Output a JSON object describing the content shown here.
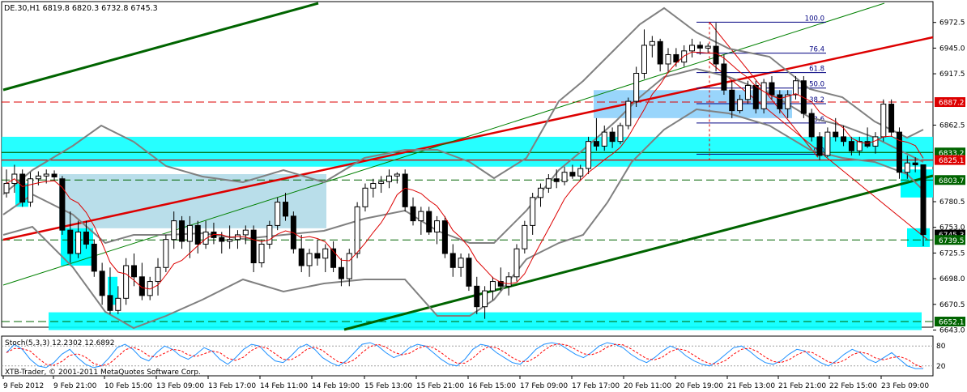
{
  "header": {
    "symbol": "DE.30,H1",
    "ohlc": "6819.8 6820.3 6732.8 6745.3"
  },
  "indicator": {
    "label": "Stoch(5,3,3) 12.2302 12.6892",
    "levels": [
      "80",
      "20"
    ]
  },
  "copyright": "XTB-Trader, © 2001-2011 MetaQuotes Software Corp.",
  "price_axis": {
    "ticks": [
      "6972.5",
      "6945.0",
      "6917.5",
      "6862.5",
      "6780.5",
      "6753.0",
      "6725.5",
      "6698.0",
      "6670.5",
      "6643.0"
    ],
    "tick_values": [
      6972.5,
      6945.0,
      6917.5,
      6862.5,
      6780.5,
      6753.0,
      6725.5,
      6698.0,
      6670.5,
      6643.0
    ],
    "markers": [
      {
        "text": "6887.2",
        "value": 6887.2,
        "color": "#dd0000"
      },
      {
        "text": "6833.2",
        "value": 6833.2,
        "color": "#006400"
      },
      {
        "text": "6825.1",
        "value": 6825.1,
        "color": "#dd0000"
      },
      {
        "text": "6803.7",
        "value": 6803.7,
        "color": "#006400"
      },
      {
        "text": "6745.3",
        "value": 6745.3,
        "color": "#000000"
      },
      {
        "text": "6739.5",
        "value": 6739.5,
        "color": "#006400"
      },
      {
        "text": "6652.1",
        "value": 6652.1,
        "color": "#006400"
      }
    ]
  },
  "time_axis": [
    "9 Feb 2012",
    "9 Feb 21:00",
    "10 Feb 15:00",
    "13 Feb 09:00",
    "13 Feb 17:00",
    "14 Feb 11:00",
    "14 Feb 19:00",
    "15 Feb 13:00",
    "15 Feb 21:00",
    "16 Feb 15:00",
    "17 Feb 09:00",
    "17 Feb 17:00",
    "20 Feb 11:00",
    "20 Feb 19:00",
    "21 Feb 13:00",
    "21 Feb 21:00",
    "22 Feb 15:00",
    "23 Feb 09:00"
  ],
  "fibonacci": {
    "levels": [
      "100.0",
      "76.4",
      "61.8",
      "50.0",
      "38.2",
      "23.6",
      "0.0"
    ],
    "values": [
      6972.8,
      6939.6,
      6918.8,
      6902.2,
      6885.5,
      6864.8,
      6831.4
    ]
  },
  "colors": {
    "bull": "#ffffff",
    "bear": "#000000",
    "zone": "#00ffff",
    "zone_gray": "#add8e6",
    "trend": "#008000",
    "resistance": "#dd0000",
    "bands": "#808080",
    "stoch_main": "#1e90ff",
    "stoch_signal": "#ff0000"
  },
  "chart_data": {
    "type": "candlestick",
    "symbol": "DE.30",
    "timeframe": "H1",
    "ylim": [
      6643.0,
      6990.0
    ],
    "candles": [
      {
        "o": 6790,
        "h": 6815,
        "l": 6785,
        "c": 6800
      },
      {
        "o": 6800,
        "h": 6820,
        "l": 6790,
        "c": 6810
      },
      {
        "o": 6810,
        "h": 6815,
        "l": 6775,
        "c": 6780
      },
      {
        "o": 6780,
        "h": 6812,
        "l": 6775,
        "c": 6805
      },
      {
        "o": 6805,
        "h": 6813,
        "l": 6798,
        "c": 6808
      },
      {
        "o": 6808,
        "h": 6815,
        "l": 6800,
        "c": 6810
      },
      {
        "o": 6810,
        "h": 6814,
        "l": 6803,
        "c": 6807
      },
      {
        "o": 6805,
        "h": 6808,
        "l": 6745,
        "c": 6750
      },
      {
        "o": 6750,
        "h": 6770,
        "l": 6715,
        "c": 6725
      },
      {
        "o": 6725,
        "h": 6760,
        "l": 6720,
        "c": 6748
      },
      {
        "o": 6748,
        "h": 6760,
        "l": 6730,
        "c": 6735
      },
      {
        "o": 6735,
        "h": 6740,
        "l": 6700,
        "c": 6706
      },
      {
        "o": 6706,
        "h": 6715,
        "l": 6670,
        "c": 6680
      },
      {
        "o": 6680,
        "h": 6710,
        "l": 6660,
        "c": 6664
      },
      {
        "o": 6664,
        "h": 6690,
        "l": 6660,
        "c": 6677
      },
      {
        "o": 6677,
        "h": 6720,
        "l": 6670,
        "c": 6712
      },
      {
        "o": 6712,
        "h": 6725,
        "l": 6690,
        "c": 6700
      },
      {
        "o": 6700,
        "h": 6715,
        "l": 6675,
        "c": 6680
      },
      {
        "o": 6680,
        "h": 6700,
        "l": 6675,
        "c": 6695
      },
      {
        "o": 6695,
        "h": 6720,
        "l": 6680,
        "c": 6710
      },
      {
        "o": 6710,
        "h": 6745,
        "l": 6705,
        "c": 6740
      },
      {
        "o": 6740,
        "h": 6770,
        "l": 6730,
        "c": 6760
      },
      {
        "o": 6760,
        "h": 6765,
        "l": 6730,
        "c": 6738
      },
      {
        "o": 6738,
        "h": 6765,
        "l": 6720,
        "c": 6755
      },
      {
        "o": 6755,
        "h": 6760,
        "l": 6725,
        "c": 6735
      },
      {
        "o": 6735,
        "h": 6760,
        "l": 6730,
        "c": 6748
      },
      {
        "o": 6748,
        "h": 6758,
        "l": 6735,
        "c": 6742
      },
      {
        "o": 6742,
        "h": 6748,
        "l": 6725,
        "c": 6738
      },
      {
        "o": 6738,
        "h": 6755,
        "l": 6730,
        "c": 6740
      },
      {
        "o": 6740,
        "h": 6750,
        "l": 6730,
        "c": 6745
      },
      {
        "o": 6745,
        "h": 6755,
        "l": 6735,
        "c": 6750
      },
      {
        "o": 6750,
        "h": 6755,
        "l": 6705,
        "c": 6715
      },
      {
        "o": 6715,
        "h": 6740,
        "l": 6710,
        "c": 6735
      },
      {
        "o": 6735,
        "h": 6760,
        "l": 6730,
        "c": 6755
      },
      {
        "o": 6755,
        "h": 6785,
        "l": 6750,
        "c": 6780
      },
      {
        "o": 6780,
        "h": 6790,
        "l": 6760,
        "c": 6765
      },
      {
        "o": 6765,
        "h": 6770,
        "l": 6725,
        "c": 6730
      },
      {
        "o": 6730,
        "h": 6745,
        "l": 6705,
        "c": 6712
      },
      {
        "o": 6712,
        "h": 6730,
        "l": 6700,
        "c": 6725
      },
      {
        "o": 6725,
        "h": 6740,
        "l": 6712,
        "c": 6720
      },
      {
        "o": 6720,
        "h": 6735,
        "l": 6705,
        "c": 6730
      },
      {
        "o": 6730,
        "h": 6738,
        "l": 6705,
        "c": 6710
      },
      {
        "o": 6710,
        "h": 6720,
        "l": 6690,
        "c": 6698
      },
      {
        "o": 6698,
        "h": 6730,
        "l": 6690,
        "c": 6725
      },
      {
        "o": 6725,
        "h": 6780,
        "l": 6720,
        "c": 6775
      },
      {
        "o": 6775,
        "h": 6800,
        "l": 6770,
        "c": 6795
      },
      {
        "o": 6795,
        "h": 6805,
        "l": 6785,
        "c": 6800
      },
      {
        "o": 6800,
        "h": 6808,
        "l": 6790,
        "c": 6802
      },
      {
        "o": 6802,
        "h": 6815,
        "l": 6795,
        "c": 6808
      },
      {
        "o": 6808,
        "h": 6812,
        "l": 6800,
        "c": 6810
      },
      {
        "o": 6810,
        "h": 6815,
        "l": 6770,
        "c": 6775
      },
      {
        "o": 6775,
        "h": 6785,
        "l": 6755,
        "c": 6760
      },
      {
        "o": 6760,
        "h": 6775,
        "l": 6745,
        "c": 6770
      },
      {
        "o": 6770,
        "h": 6775,
        "l": 6745,
        "c": 6748
      },
      {
        "o": 6748,
        "h": 6765,
        "l": 6735,
        "c": 6760
      },
      {
        "o": 6760,
        "h": 6765,
        "l": 6720,
        "c": 6725
      },
      {
        "o": 6725,
        "h": 6735,
        "l": 6700,
        "c": 6710
      },
      {
        "o": 6710,
        "h": 6725,
        "l": 6700,
        "c": 6720
      },
      {
        "o": 6720,
        "h": 6725,
        "l": 6685,
        "c": 6690
      },
      {
        "o": 6690,
        "h": 6700,
        "l": 6660,
        "c": 6668
      },
      {
        "o": 6668,
        "h": 6690,
        "l": 6655,
        "c": 6685
      },
      {
        "o": 6685,
        "h": 6700,
        "l": 6675,
        "c": 6695
      },
      {
        "o": 6695,
        "h": 6710,
        "l": 6685,
        "c": 6690
      },
      {
        "o": 6690,
        "h": 6705,
        "l": 6680,
        "c": 6700
      },
      {
        "o": 6700,
        "h": 6735,
        "l": 6695,
        "c": 6730
      },
      {
        "o": 6730,
        "h": 6760,
        "l": 6725,
        "c": 6755
      },
      {
        "o": 6755,
        "h": 6790,
        "l": 6745,
        "c": 6785
      },
      {
        "o": 6785,
        "h": 6800,
        "l": 6775,
        "c": 6795
      },
      {
        "o": 6795,
        "h": 6810,
        "l": 6790,
        "c": 6805
      },
      {
        "o": 6805,
        "h": 6815,
        "l": 6795,
        "c": 6802
      },
      {
        "o": 6802,
        "h": 6818,
        "l": 6798,
        "c": 6812
      },
      {
        "o": 6812,
        "h": 6820,
        "l": 6805,
        "c": 6808
      },
      {
        "o": 6808,
        "h": 6820,
        "l": 6803,
        "c": 6816
      },
      {
        "o": 6816,
        "h": 6850,
        "l": 6810,
        "c": 6845
      },
      {
        "o": 6845,
        "h": 6870,
        "l": 6835,
        "c": 6840
      },
      {
        "o": 6840,
        "h": 6862,
        "l": 6835,
        "c": 6855
      },
      {
        "o": 6855,
        "h": 6860,
        "l": 6838,
        "c": 6845
      },
      {
        "o": 6845,
        "h": 6865,
        "l": 6842,
        "c": 6862
      },
      {
        "o": 6862,
        "h": 6892,
        "l": 6858,
        "c": 6888
      },
      {
        "o": 6888,
        "h": 6925,
        "l": 6882,
        "c": 6918
      },
      {
        "o": 6918,
        "h": 6965,
        "l": 6912,
        "c": 6948
      },
      {
        "o": 6948,
        "h": 6958,
        "l": 6935,
        "c": 6952
      },
      {
        "o": 6952,
        "h": 6955,
        "l": 6920,
        "c": 6928
      },
      {
        "o": 6928,
        "h": 6945,
        "l": 6918,
        "c": 6938
      },
      {
        "o": 6938,
        "h": 6945,
        "l": 6925,
        "c": 6930
      },
      {
        "o": 6930,
        "h": 6948,
        "l": 6925,
        "c": 6942
      },
      {
        "o": 6942,
        "h": 6955,
        "l": 6935,
        "c": 6948
      },
      {
        "o": 6948,
        "h": 6952,
        "l": 6938,
        "c": 6945
      },
      {
        "o": 6945,
        "h": 6950,
        "l": 6940,
        "c": 6947
      },
      {
        "o": 6947,
        "h": 6972,
        "l": 6920,
        "c": 6928
      },
      {
        "o": 6928,
        "h": 6938,
        "l": 6895,
        "c": 6900
      },
      {
        "o": 6900,
        "h": 6910,
        "l": 6870,
        "c": 6878
      },
      {
        "o": 6878,
        "h": 6895,
        "l": 6875,
        "c": 6890
      },
      {
        "o": 6890,
        "h": 6910,
        "l": 6885,
        "c": 6905
      },
      {
        "o": 6905,
        "h": 6910,
        "l": 6875,
        "c": 6880
      },
      {
        "o": 6880,
        "h": 6912,
        "l": 6875,
        "c": 6908
      },
      {
        "o": 6908,
        "h": 6915,
        "l": 6890,
        "c": 6895
      },
      {
        "o": 6895,
        "h": 6900,
        "l": 6875,
        "c": 6880
      },
      {
        "o": 6880,
        "h": 6900,
        "l": 6870,
        "c": 6895
      },
      {
        "o": 6895,
        "h": 6915,
        "l": 6890,
        "c": 6910
      },
      {
        "o": 6910,
        "h": 6915,
        "l": 6870,
        "c": 6875
      },
      {
        "o": 6875,
        "h": 6880,
        "l": 6845,
        "c": 6850
      },
      {
        "o": 6850,
        "h": 6855,
        "l": 6825,
        "c": 6830
      },
      {
        "o": 6830,
        "h": 6860,
        "l": 6828,
        "c": 6855
      },
      {
        "o": 6855,
        "h": 6870,
        "l": 6845,
        "c": 6850
      },
      {
        "o": 6850,
        "h": 6862,
        "l": 6840,
        "c": 6845
      },
      {
        "o": 6845,
        "h": 6850,
        "l": 6830,
        "c": 6835
      },
      {
        "o": 6835,
        "h": 6850,
        "l": 6830,
        "c": 6845
      },
      {
        "o": 6845,
        "h": 6860,
        "l": 6838,
        "c": 6840
      },
      {
        "o": 6840,
        "h": 6855,
        "l": 6832,
        "c": 6850
      },
      {
        "o": 6850,
        "h": 6890,
        "l": 6845,
        "c": 6885
      },
      {
        "o": 6885,
        "h": 6890,
        "l": 6850,
        "c": 6855
      },
      {
        "o": 6855,
        "h": 6860,
        "l": 6805,
        "c": 6812
      },
      {
        "o": 6812,
        "h": 6830,
        "l": 6805,
        "c": 6822
      },
      {
        "o": 6822,
        "h": 6828,
        "l": 6812,
        "c": 6820
      },
      {
        "o": 6820,
        "h": 6820.3,
        "l": 6732.8,
        "c": 6745.3
      }
    ]
  }
}
